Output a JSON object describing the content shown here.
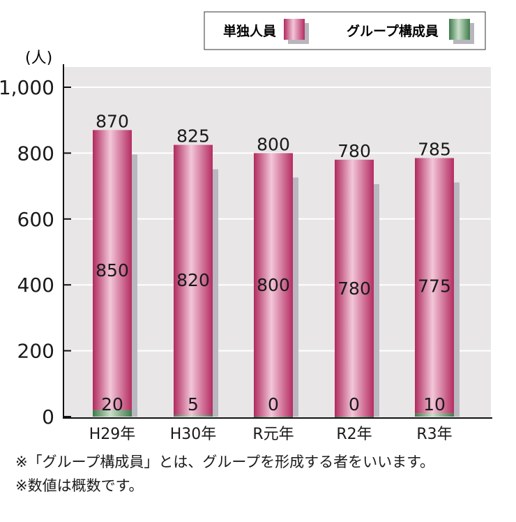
{
  "chart_data": {
    "type": "bar",
    "stacked": true,
    "categories": [
      "H29年",
      "H30年",
      "R元年",
      "R2年",
      "R3年"
    ],
    "series": [
      {
        "name": "単独人員",
        "values": [
          850,
          820,
          800,
          780,
          775
        ],
        "color": "#c2386f"
      },
      {
        "name": "グループ構成員",
        "values": [
          20,
          5,
          0,
          0,
          10
        ],
        "color": "#4f8a5a"
      }
    ],
    "totals": [
      870,
      825,
      800,
      780,
      785
    ],
    "ylabel": "(人)",
    "ylim": [
      0,
      1000
    ],
    "yticks": [
      0,
      200,
      400,
      600,
      800,
      1000
    ],
    "ytick_labels": [
      "0",
      "200",
      "400",
      "600",
      "800",
      "1,000"
    ],
    "grid": true,
    "legend": "top-right"
  },
  "notes": [
    "※「グループ構成員」とは、グループを形成する者をいいます。",
    "※数値は概数です。"
  ]
}
